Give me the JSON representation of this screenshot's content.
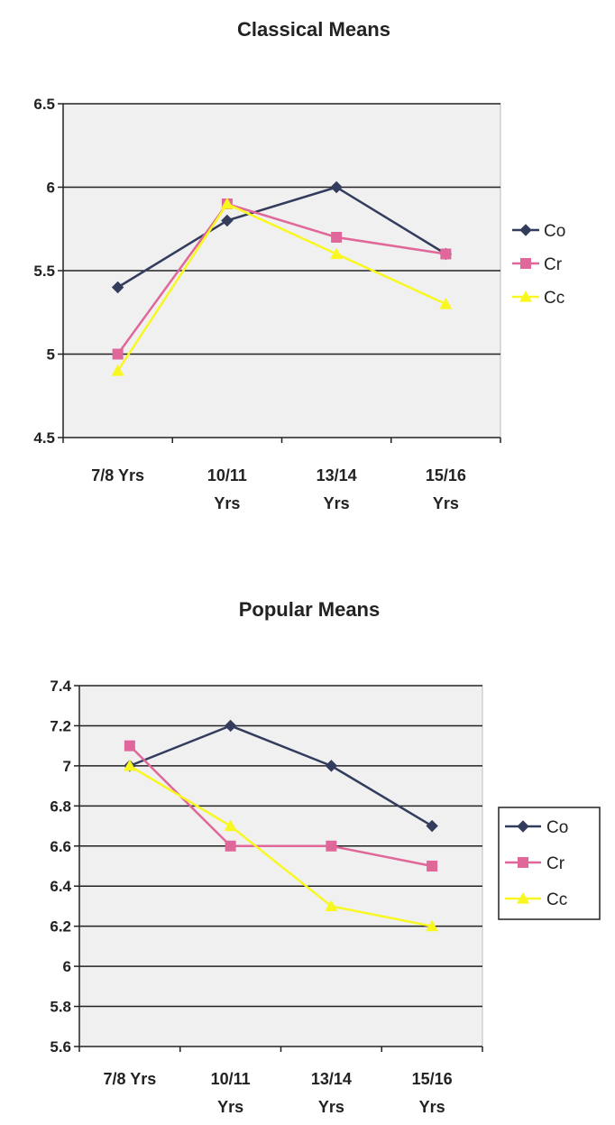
{
  "chart_data": [
    {
      "type": "line",
      "title": "Classical Means",
      "xlabel": "",
      "ylabel": "",
      "categories": [
        [
          "7/8 Yrs"
        ],
        [
          "10/11",
          "Yrs"
        ],
        [
          "13/14",
          "Yrs"
        ],
        [
          "15/16",
          "Yrs"
        ]
      ],
      "ylim": [
        4.5,
        6.5
      ],
      "yticks": [
        4.5,
        5,
        5.5,
        6,
        6.5
      ],
      "ytick_labels": [
        "4.5",
        "5",
        "5.5",
        "6",
        "6.5"
      ],
      "grid": true,
      "legend": "right, no border",
      "series": [
        {
          "name": "Co",
          "values": [
            5.4,
            5.8,
            6.0,
            5.6
          ],
          "color": "#333c5c",
          "marker": "diamond"
        },
        {
          "name": "Cr",
          "values": [
            5.0,
            5.9,
            5.7,
            5.6
          ],
          "color": "#e0679a",
          "marker": "square"
        },
        {
          "name": "Cc",
          "values": [
            4.9,
            5.9,
            5.6,
            5.3
          ],
          "color": "#f8f820",
          "marker": "triangle"
        }
      ]
    },
    {
      "type": "line",
      "title": "Popular Means",
      "xlabel": "",
      "ylabel": "",
      "categories": [
        [
          "7/8 Yrs"
        ],
        [
          "10/11",
          "Yrs"
        ],
        [
          "13/14",
          "Yrs"
        ],
        [
          "15/16",
          "Yrs"
        ]
      ],
      "ylim": [
        5.6,
        7.4
      ],
      "yticks": [
        5.6,
        5.8,
        6,
        6.2,
        6.4,
        6.6,
        6.8,
        7,
        7.2,
        7.4
      ],
      "ytick_labels": [
        "5.6",
        "5.8",
        "6",
        "6.2",
        "6.4",
        "6.6",
        "6.8",
        "7",
        "7.2",
        "7.4"
      ],
      "grid": true,
      "legend": "right, boxed",
      "series": [
        {
          "name": "Co",
          "values": [
            7.0,
            7.2,
            7.0,
            6.7
          ],
          "color": "#333c5c",
          "marker": "diamond"
        },
        {
          "name": "Cr",
          "values": [
            7.1,
            6.6,
            6.6,
            6.5
          ],
          "color": "#e0679a",
          "marker": "square"
        },
        {
          "name": "Cc",
          "values": [
            7.0,
            6.7,
            6.3,
            6.2
          ],
          "color": "#f8f820",
          "marker": "triangle"
        }
      ]
    }
  ]
}
